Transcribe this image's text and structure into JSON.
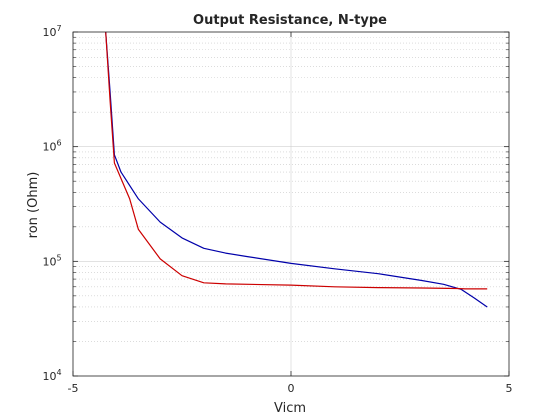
{
  "chart_data": {
    "type": "line",
    "title": "Output Resistance, N-type",
    "xlabel": "Vicm",
    "ylabel": "ron (Ohm)",
    "xlim": [
      -5,
      5
    ],
    "ylim": [
      10000,
      10000000
    ],
    "yscale": "log",
    "grid": true,
    "x_ticks": [
      "-5",
      "0",
      "5"
    ],
    "y_ticks": [
      {
        "value": 10000,
        "base": "10",
        "exp": "4"
      },
      {
        "value": 100000,
        "base": "10",
        "exp": "5"
      },
      {
        "value": 1000000,
        "base": "10",
        "exp": "6"
      },
      {
        "value": 10000000,
        "base": "10",
        "exp": "7"
      }
    ],
    "series": [
      {
        "color": "#0000aa",
        "points": [
          [
            -4.25,
            10000000
          ],
          [
            -4.15,
            3000000
          ],
          [
            -4.05,
            850000
          ],
          [
            -3.9,
            600000
          ],
          [
            -3.5,
            350000
          ],
          [
            -3.0,
            220000
          ],
          [
            -2.5,
            160000
          ],
          [
            -2.0,
            130000
          ],
          [
            -1.5,
            118000
          ],
          [
            -1.0,
            110000
          ],
          [
            0.0,
            96000
          ],
          [
            1.0,
            86000
          ],
          [
            2.0,
            78000
          ],
          [
            3.0,
            68000
          ],
          [
            3.5,
            63000
          ],
          [
            3.9,
            57000
          ],
          [
            4.2,
            48000
          ],
          [
            4.5,
            40000
          ]
        ]
      },
      {
        "color": "#cc0000",
        "points": [
          [
            -4.25,
            10000000
          ],
          [
            -4.15,
            2500000
          ],
          [
            -4.05,
            720000
          ],
          [
            -3.7,
            350000
          ],
          [
            -3.5,
            190000
          ],
          [
            -3.0,
            105000
          ],
          [
            -2.5,
            75000
          ],
          [
            -2.0,
            65000
          ],
          [
            -1.5,
            63500
          ],
          [
            0.0,
            62000
          ],
          [
            1.0,
            60000
          ],
          [
            2.0,
            59000
          ],
          [
            3.0,
            58500
          ],
          [
            3.8,
            58000
          ],
          [
            4.0,
            57500
          ],
          [
            4.5,
            57500
          ]
        ]
      }
    ]
  }
}
